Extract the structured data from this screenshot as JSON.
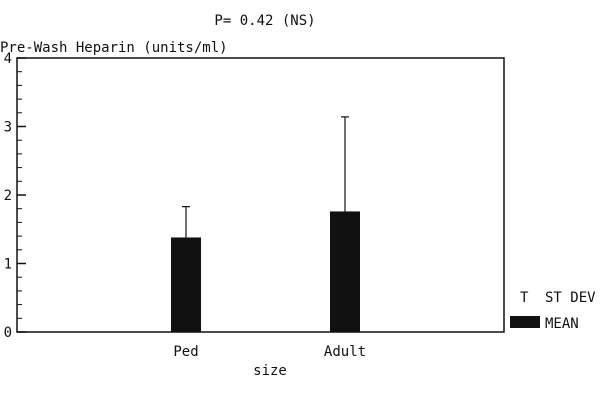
{
  "chart_data": {
    "type": "bar",
    "title": "P= 0.42 (NS)",
    "ylabel": "Pre-Wash Heparin (units/ml)",
    "xlabel": "size",
    "categories": [
      "Ped",
      "Adult"
    ],
    "series": [
      {
        "name": "MEAN",
        "values": [
          1.38,
          1.76
        ]
      }
    ],
    "error_bars": {
      "name": "ST DEV",
      "values": [
        0.45,
        1.38
      ],
      "direction": "upper"
    },
    "ylim": [
      0,
      4
    ],
    "yticks": [
      "0",
      "1",
      "2",
      "3",
      "4"
    ],
    "legend": {
      "placement": "right",
      "entries": [
        {
          "symbol": "T",
          "label": "ST DEV"
        },
        {
          "symbol": "bar",
          "label": "MEAN"
        }
      ]
    },
    "grid": false,
    "colors": {
      "bar": "#111111",
      "axis": "#111111"
    }
  }
}
